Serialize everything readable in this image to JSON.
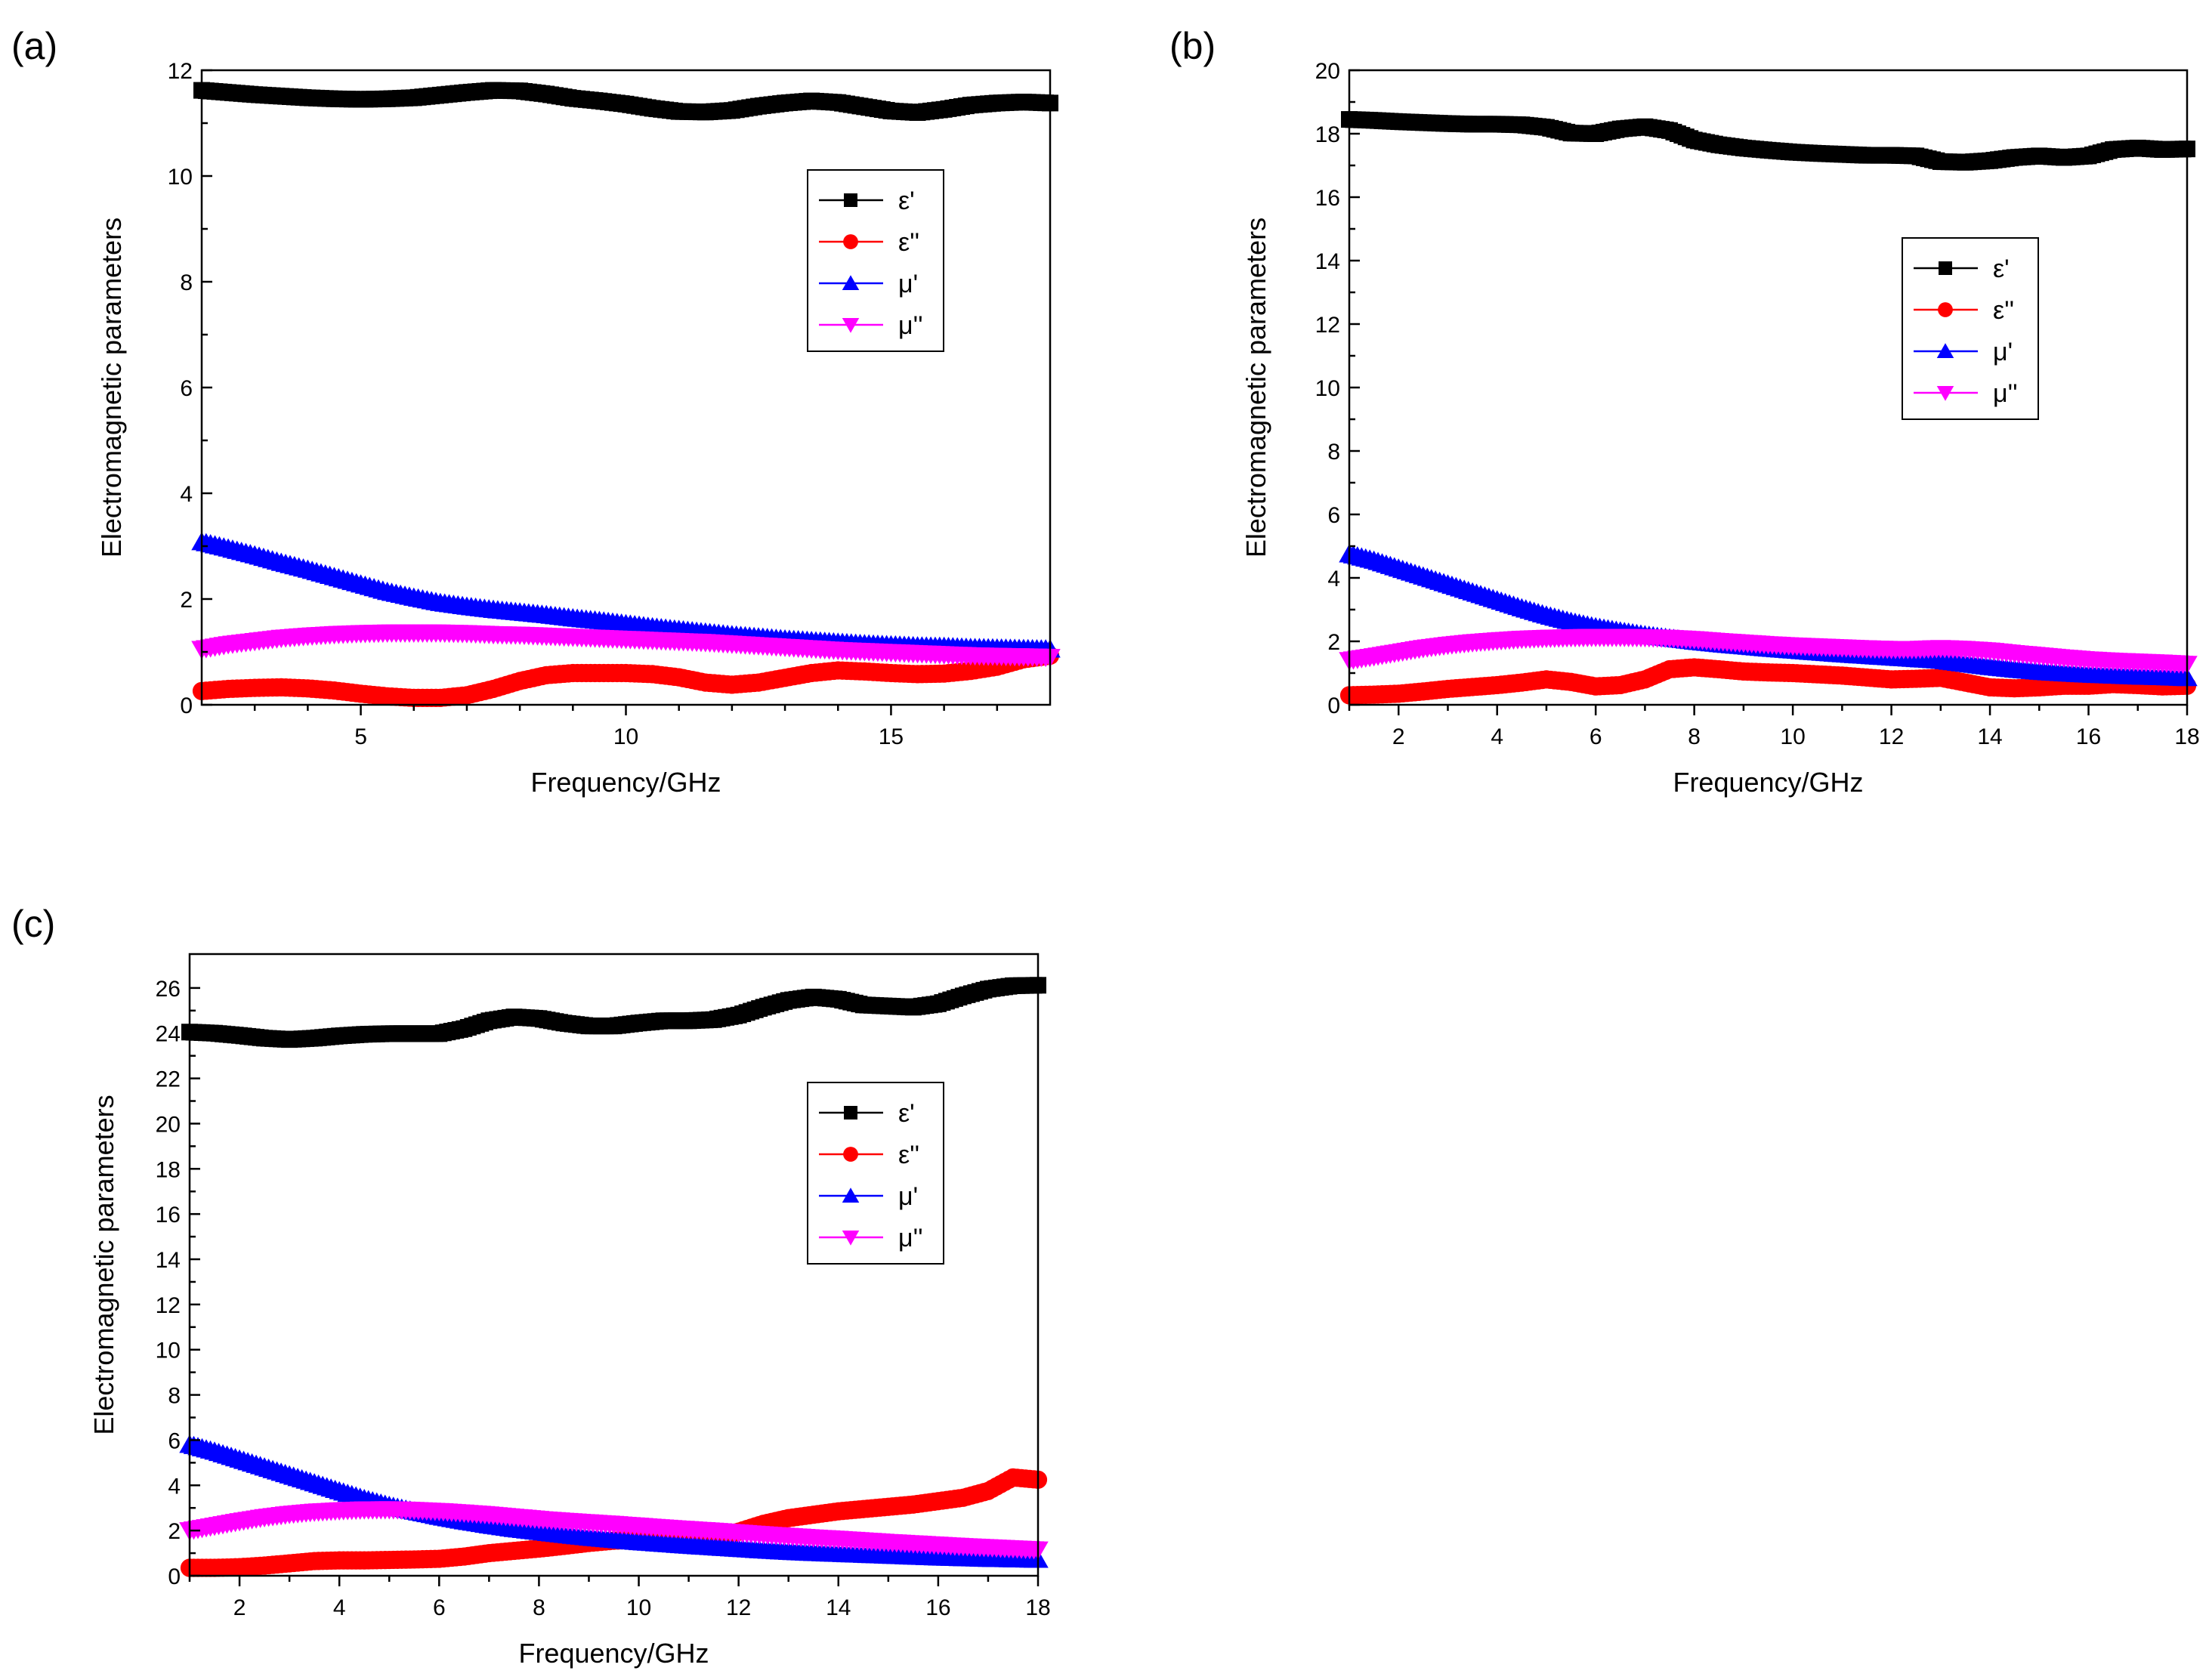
{
  "figure": {
    "panels": [
      "(a)",
      "(b)",
      "(c)"
    ]
  },
  "chart_data": [
    {
      "type": "line",
      "panel_label": "(a)",
      "xlabel": "Frequency/GHz",
      "ylabel": "Electromagnetic parameters",
      "xlim": [
        2,
        18
      ],
      "ylim": [
        0,
        12
      ],
      "x_major_ticks": [
        5,
        10,
        15
      ],
      "x_minor_ticks": [
        3,
        4,
        6,
        7,
        8,
        9,
        11,
        12,
        13,
        14,
        16,
        17
      ],
      "y_ticks": [
        0,
        2,
        4,
        6,
        8,
        10,
        12
      ],
      "x": [
        2,
        2.5,
        3,
        3.5,
        4,
        4.5,
        5,
        5.5,
        6,
        6.5,
        7,
        7.5,
        8,
        8.5,
        9,
        9.5,
        10,
        10.5,
        11,
        11.5,
        12,
        12.5,
        13,
        13.5,
        14,
        14.5,
        15,
        15.5,
        16,
        16.5,
        17,
        17.5,
        18
      ],
      "legend": {
        "position": "top-right",
        "entries": [
          "ε'",
          "ε''",
          "μ'",
          "μ''"
        ]
      },
      "series": [
        {
          "name": "ε'",
          "color": "#000000",
          "marker": "square",
          "values": [
            11.62,
            11.58,
            11.54,
            11.51,
            11.48,
            11.46,
            11.45,
            11.46,
            11.48,
            11.53,
            11.58,
            11.62,
            11.61,
            11.55,
            11.47,
            11.42,
            11.36,
            11.28,
            11.22,
            11.21,
            11.24,
            11.32,
            11.38,
            11.42,
            11.39,
            11.31,
            11.23,
            11.2,
            11.26,
            11.34,
            11.38,
            11.4,
            11.38
          ]
        },
        {
          "name": "ε''",
          "color": "#ff0000",
          "marker": "circle",
          "values": [
            0.26,
            0.3,
            0.32,
            0.33,
            0.31,
            0.27,
            0.21,
            0.16,
            0.13,
            0.13,
            0.18,
            0.3,
            0.45,
            0.56,
            0.6,
            0.6,
            0.6,
            0.58,
            0.52,
            0.42,
            0.38,
            0.42,
            0.51,
            0.6,
            0.65,
            0.63,
            0.6,
            0.58,
            0.59,
            0.64,
            0.72,
            0.86,
            0.93
          ]
        },
        {
          "name": "μ'",
          "color": "#0000ff",
          "marker": "triangle-up",
          "values": [
            3.08,
            2.96,
            2.83,
            2.69,
            2.56,
            2.42,
            2.28,
            2.14,
            2.03,
            1.93,
            1.86,
            1.8,
            1.75,
            1.7,
            1.64,
            1.59,
            1.53,
            1.47,
            1.42,
            1.37,
            1.32,
            1.28,
            1.24,
            1.21,
            1.18,
            1.15,
            1.13,
            1.11,
            1.1,
            1.08,
            1.07,
            1.06,
            1.05
          ]
        },
        {
          "name": "μ''",
          "color": "#ff00ff",
          "marker": "triangle-down",
          "values": [
            1.05,
            1.14,
            1.2,
            1.26,
            1.3,
            1.33,
            1.35,
            1.36,
            1.36,
            1.36,
            1.35,
            1.33,
            1.32,
            1.3,
            1.28,
            1.26,
            1.24,
            1.22,
            1.2,
            1.18,
            1.15,
            1.12,
            1.09,
            1.06,
            1.03,
            1.01,
            0.99,
            0.97,
            0.95,
            0.93,
            0.92,
            0.91,
            0.9
          ]
        }
      ]
    },
    {
      "type": "line",
      "panel_label": "(b)",
      "xlabel": "Frequency/GHz",
      "ylabel": "Electromagnetic parameters",
      "xlim": [
        1,
        18
      ],
      "ylim": [
        0,
        20
      ],
      "x_major_ticks": [
        2,
        4,
        6,
        8,
        10,
        12,
        14,
        16,
        18
      ],
      "x_minor_ticks": [
        1,
        3,
        5,
        7,
        9,
        11,
        13,
        15,
        17
      ],
      "y_ticks": [
        0,
        2,
        4,
        6,
        8,
        10,
        12,
        14,
        16,
        18,
        20
      ],
      "x": [
        1,
        1.5,
        2,
        2.5,
        3,
        3.5,
        4,
        4.5,
        5,
        5.5,
        6,
        6.5,
        7,
        7.5,
        8,
        8.5,
        9,
        9.5,
        10,
        10.5,
        11,
        11.5,
        12,
        12.5,
        13,
        13.5,
        14,
        14.5,
        15,
        15.5,
        16,
        16.5,
        17,
        17.5,
        18
      ],
      "legend": {
        "position": "top-right",
        "entries": [
          "ε'",
          "ε''",
          "μ'",
          "μ''"
        ]
      },
      "series": [
        {
          "name": "ε'",
          "color": "#000000",
          "marker": "square",
          "values": [
            18.45,
            18.42,
            18.38,
            18.35,
            18.32,
            18.3,
            18.3,
            18.28,
            18.2,
            18.02,
            18.0,
            18.15,
            18.22,
            18.1,
            17.8,
            17.65,
            17.55,
            17.48,
            17.42,
            17.38,
            17.35,
            17.32,
            17.32,
            17.3,
            17.12,
            17.1,
            17.15,
            17.25,
            17.3,
            17.25,
            17.3,
            17.5,
            17.55,
            17.5,
            17.52
          ]
        },
        {
          "name": "ε''",
          "color": "#ff0000",
          "marker": "circle",
          "values": [
            0.3,
            0.32,
            0.35,
            0.42,
            0.5,
            0.56,
            0.62,
            0.7,
            0.8,
            0.72,
            0.58,
            0.62,
            0.8,
            1.12,
            1.18,
            1.12,
            1.05,
            1.02,
            1.0,
            0.96,
            0.92,
            0.86,
            0.8,
            0.82,
            0.85,
            0.7,
            0.55,
            0.52,
            0.55,
            0.6,
            0.6,
            0.65,
            0.62,
            0.58,
            0.6
          ]
        },
        {
          "name": "μ'",
          "color": "#0000ff",
          "marker": "triangle-up",
          "values": [
            4.75,
            4.55,
            4.3,
            4.05,
            3.8,
            3.55,
            3.3,
            3.05,
            2.82,
            2.62,
            2.45,
            2.32,
            2.2,
            2.1,
            2.0,
            1.92,
            1.85,
            1.78,
            1.72,
            1.66,
            1.6,
            1.55,
            1.5,
            1.45,
            1.4,
            1.3,
            1.2,
            1.12,
            1.05,
            1.0,
            0.96,
            0.93,
            0.9,
            0.88,
            0.85
          ]
        },
        {
          "name": "μ''",
          "color": "#ff00ff",
          "marker": "triangle-down",
          "values": [
            1.4,
            1.52,
            1.65,
            1.78,
            1.88,
            1.96,
            2.02,
            2.07,
            2.1,
            2.12,
            2.13,
            2.13,
            2.12,
            2.1,
            2.06,
            2.0,
            1.95,
            1.9,
            1.86,
            1.83,
            1.8,
            1.77,
            1.75,
            1.75,
            1.78,
            1.75,
            1.7,
            1.62,
            1.55,
            1.48,
            1.42,
            1.38,
            1.35,
            1.32,
            1.28
          ]
        }
      ]
    },
    {
      "type": "line",
      "panel_label": "(c)",
      "xlabel": "Frequency/GHz",
      "ylabel": "Electromagnetic parameters",
      "xlim": [
        1,
        18
      ],
      "ylim": [
        0,
        27.5
      ],
      "x_major_ticks": [
        2,
        4,
        6,
        8,
        10,
        12,
        14,
        16,
        18
      ],
      "x_minor_ticks": [
        1,
        3,
        5,
        7,
        9,
        11,
        13,
        15,
        17
      ],
      "y_ticks": [
        0,
        2,
        4,
        6,
        8,
        10,
        12,
        14,
        16,
        18,
        20,
        22,
        24,
        26
      ],
      "x": [
        1,
        1.5,
        2,
        2.5,
        3,
        3.5,
        4,
        4.5,
        5,
        5.5,
        6,
        6.5,
        7,
        7.5,
        8,
        8.5,
        9,
        9.5,
        10,
        10.5,
        11,
        11.5,
        12,
        12.5,
        13,
        13.5,
        14,
        14.5,
        15,
        15.5,
        16,
        16.5,
        17,
        17.5,
        18
      ],
      "legend": {
        "position": "right",
        "entries": [
          "ε'",
          "ε''",
          "μ'",
          "μ''"
        ]
      },
      "series": [
        {
          "name": "ε'",
          "color": "#000000",
          "marker": "square",
          "values": [
            24.05,
            24.0,
            23.9,
            23.78,
            23.72,
            23.78,
            23.88,
            23.95,
            23.98,
            23.98,
            23.98,
            24.2,
            24.55,
            24.72,
            24.65,
            24.45,
            24.32,
            24.32,
            24.45,
            24.55,
            24.55,
            24.6,
            24.8,
            25.15,
            25.45,
            25.6,
            25.5,
            25.25,
            25.2,
            25.15,
            25.3,
            25.65,
            25.95,
            26.1,
            26.12
          ]
        },
        {
          "name": "ε''",
          "color": "#ff0000",
          "marker": "circle",
          "values": [
            0.35,
            0.35,
            0.38,
            0.45,
            0.55,
            0.65,
            0.68,
            0.68,
            0.7,
            0.72,
            0.75,
            0.85,
            1.0,
            1.1,
            1.2,
            1.32,
            1.45,
            1.55,
            1.6,
            1.6,
            1.62,
            1.7,
            1.95,
            2.3,
            2.55,
            2.7,
            2.85,
            2.95,
            3.05,
            3.15,
            3.3,
            3.45,
            3.75,
            4.35,
            4.25
          ]
        },
        {
          "name": "μ'",
          "color": "#0000ff",
          "marker": "triangle-up",
          "values": [
            5.8,
            5.5,
            5.15,
            4.8,
            4.45,
            4.1,
            3.75,
            3.4,
            3.1,
            2.85,
            2.62,
            2.42,
            2.24,
            2.08,
            1.95,
            1.82,
            1.7,
            1.6,
            1.5,
            1.42,
            1.34,
            1.27,
            1.2,
            1.13,
            1.07,
            1.02,
            0.98,
            0.94,
            0.9,
            0.86,
            0.82,
            0.79,
            0.76,
            0.74,
            0.72
          ]
        },
        {
          "name": "μ''",
          "color": "#ff00ff",
          "marker": "triangle-down",
          "values": [
            2.0,
            2.2,
            2.4,
            2.58,
            2.72,
            2.82,
            2.88,
            2.92,
            2.93,
            2.9,
            2.85,
            2.78,
            2.7,
            2.6,
            2.5,
            2.42,
            2.35,
            2.28,
            2.2,
            2.12,
            2.05,
            1.98,
            1.9,
            1.82,
            1.75,
            1.68,
            1.62,
            1.55,
            1.48,
            1.42,
            1.36,
            1.3,
            1.25,
            1.2,
            1.15
          ]
        }
      ]
    }
  ]
}
